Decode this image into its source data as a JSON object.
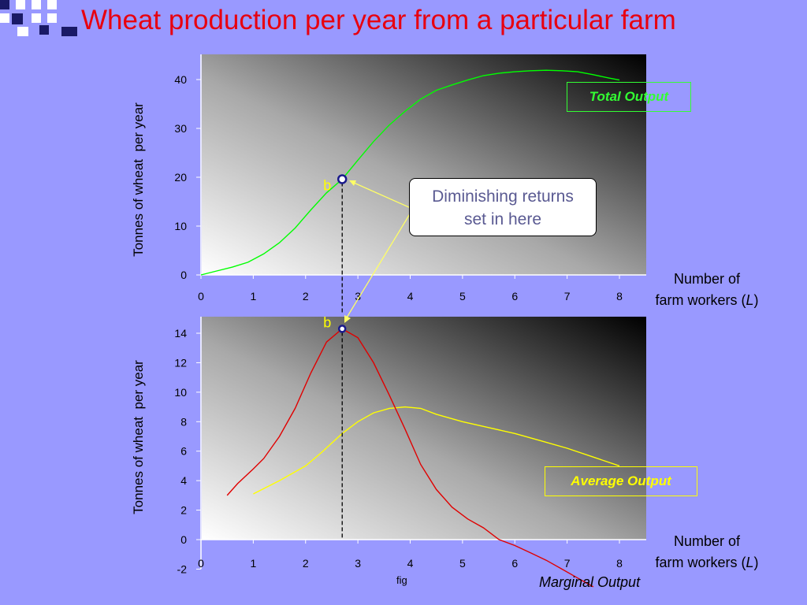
{
  "slide": {
    "title": "Wheat production per year from a particular farm",
    "footer": "fig"
  },
  "colors": {
    "background": "#9999ff",
    "title": "#e8000f",
    "total_output": "#00ff00",
    "average_output": "#ffff00",
    "marginal_output": "#e00000",
    "callout_text": "#5a5a92",
    "marker": "#1a1a8c"
  },
  "annotation": {
    "callout_lines": [
      "Diminishing returns",
      "set in here"
    ],
    "point_label": "b",
    "point_x": 2.7
  },
  "chart_data": [
    {
      "type": "line",
      "title": "",
      "xlabel_lines": [
        "Number of",
        "farm workers (",
        "L",
        ")"
      ],
      "ylabel": "Tonnes of wheat  per year",
      "xlim": [
        0,
        8.5
      ],
      "ylim": [
        0,
        45
      ],
      "x_ticks": [
        0,
        1,
        2,
        3,
        4,
        5,
        6,
        7,
        8
      ],
      "y_ticks": [
        0,
        10,
        20,
        30,
        40
      ],
      "series": [
        {
          "name": "Total Output",
          "x": [
            0,
            0.3,
            0.6,
            0.9,
            1.2,
            1.5,
            1.8,
            2.1,
            2.4,
            2.7,
            3.0,
            3.3,
            3.6,
            3.9,
            4.2,
            4.5,
            4.8,
            5.1,
            5.4,
            5.7,
            6.0,
            6.3,
            6.6,
            6.9,
            7.2,
            7.5,
            7.8,
            8.0
          ],
          "y": [
            0,
            0.8,
            1.6,
            2.6,
            4.3,
            6.6,
            9.6,
            13.3,
            16.8,
            19.6,
            23.5,
            27.3,
            30.7,
            33.5,
            36.0,
            37.8,
            38.9,
            39.9,
            40.8,
            41.3,
            41.6,
            41.8,
            41.9,
            41.8,
            41.6,
            41.0,
            40.3,
            39.9
          ]
        }
      ]
    },
    {
      "type": "line",
      "title": "",
      "xlabel_lines": [
        "Number of",
        "farm workers (",
        "L",
        ")"
      ],
      "ylabel": "Tonnes of wheat  per year",
      "xlim": [
        0,
        8.5
      ],
      "ylim": [
        -2,
        15
      ],
      "x_ticks": [
        0,
        1,
        2,
        3,
        4,
        5,
        6,
        7,
        8
      ],
      "y_ticks": [
        -2,
        0,
        2,
        4,
        6,
        8,
        10,
        12,
        14
      ],
      "series": [
        {
          "name": "Average Output",
          "x": [
            1.0,
            1.5,
            2.0,
            2.3,
            2.7,
            3.0,
            3.3,
            3.6,
            3.9,
            4.2,
            4.5,
            5.0,
            5.5,
            6.0,
            6.5,
            7.0,
            7.5,
            8.0
          ],
          "y": [
            3.1,
            4.0,
            5.0,
            5.9,
            7.2,
            8.0,
            8.6,
            8.9,
            9.0,
            8.9,
            8.5,
            8.0,
            7.6,
            7.2,
            6.7,
            6.2,
            5.6,
            5.0
          ]
        },
        {
          "name": "Marginal Output",
          "x": [
            0.5,
            0.7,
            1.0,
            1.2,
            1.5,
            1.8,
            2.1,
            2.4,
            2.7,
            3.0,
            3.3,
            3.6,
            3.9,
            4.2,
            4.5,
            4.8,
            5.1,
            5.4,
            5.7,
            6.0,
            6.3,
            6.6,
            6.9,
            7.2,
            7.5
          ],
          "y": [
            3.0,
            3.8,
            4.8,
            5.5,
            7.0,
            8.9,
            11.3,
            13.4,
            14.3,
            13.7,
            12.0,
            9.8,
            7.5,
            5.1,
            3.4,
            2.2,
            1.4,
            0.8,
            0.0,
            -0.4,
            -0.9,
            -1.4,
            -2.0,
            -2.6,
            -3.2
          ]
        }
      ]
    }
  ],
  "legend": {
    "total_label": "Total Output",
    "average_label": "Average Output",
    "marginal_label": "Marginal Output"
  }
}
